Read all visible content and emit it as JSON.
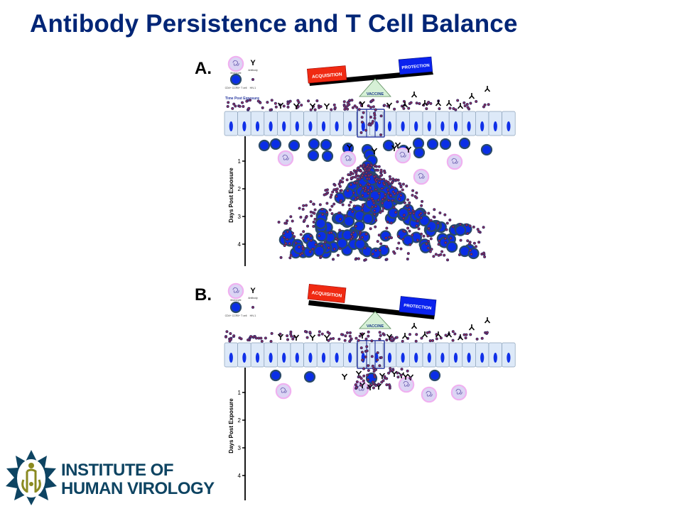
{
  "slide": {
    "title": "Antibody Persistence and T Cell Balance"
  },
  "colors": {
    "title": "#002576",
    "acquisition": "#f02a12",
    "protection": "#0a22ee",
    "vaccine_fill": "#d6f0d6",
    "cell_layer": "#dde9f8",
    "nucleus": "#1030e8",
    "tcell_fill": "#0a2ee6",
    "tcell_ring": "#2a4a6a",
    "virus": "#3a2a6a",
    "virus_center": "#c0304a",
    "monocyte": "#dcd4f4",
    "monocyte_ring": "#f0b0f0",
    "logo_blue": "#0e4462",
    "logo_olive": "#8a8a20"
  },
  "legend": {
    "monocyte": "Monocyte",
    "antibody": "Antibody",
    "tcell": "CD4+ CCR5+ T cell",
    "virus": "HIV-1",
    "antibody_glyph": "Y"
  },
  "panels": [
    {
      "id": "A",
      "label": "A.",
      "balance": {
        "left_label": "ACQUISITION",
        "right_label": "PROTECTION",
        "fulcrum_label": "VACCINE",
        "tilt": "protection-up"
      },
      "time_label": "Time Post Exposure",
      "axis": {
        "title": "Days Post Exposure",
        "ticks": [
          "1",
          "2",
          "3",
          "4"
        ]
      },
      "outcome": "expanding T cell infection cascade"
    },
    {
      "id": "B",
      "label": "B.",
      "balance": {
        "left_label": "ACQUISITION",
        "right_label": "PROTECTION",
        "fulcrum_label": "VACCINE",
        "tilt": "protection-down"
      },
      "axis": {
        "title": "Days Post Exposure",
        "ticks": [
          "1",
          "2",
          "3",
          "4"
        ]
      },
      "outcome": "infection contained"
    }
  ],
  "logo": {
    "line1": "INSTITUTE OF",
    "line2": "HUMAN VIROLOGY"
  }
}
